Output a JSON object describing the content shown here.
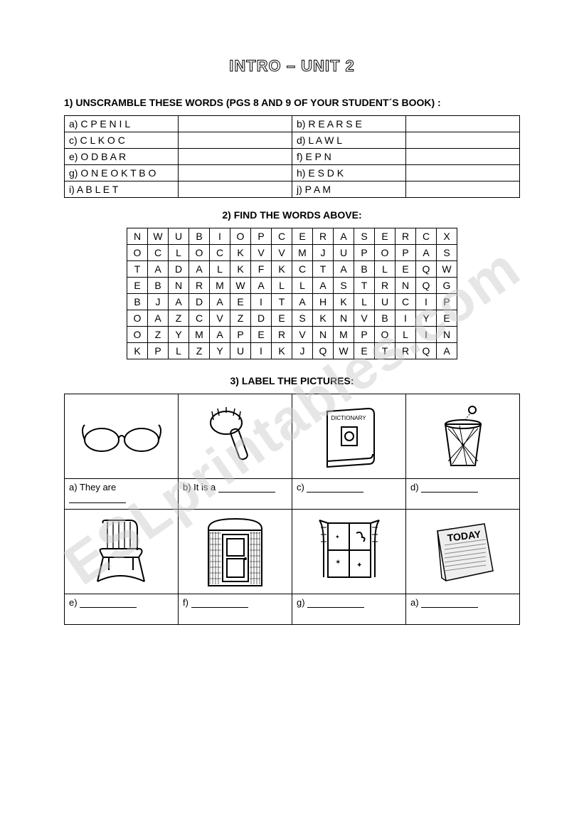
{
  "title": "INTRO – UNIT 2",
  "section1": {
    "instruction": "1) UNSCRAMBLE THESE WORDS (PGS 8 AND 9 OF YOUR STUDENT´S BOOK) :",
    "rows": [
      {
        "left": "a) C P E N I L",
        "right": "b) R E A R S E"
      },
      {
        "left": "c) C L K O C",
        "right": "d) L A W L"
      },
      {
        "left": "e) O D B A R",
        "right": "f) E P N"
      },
      {
        "left": "g) O N E O K T B O",
        "right": "h) E S D K"
      },
      {
        "left": "i) A B L E T",
        "right": "j) P A M"
      }
    ]
  },
  "section2": {
    "instruction": "2) FIND THE WORDS ABOVE:",
    "grid": [
      [
        "N",
        "W",
        "U",
        "B",
        "I",
        "O",
        "P",
        "C",
        "E",
        "R",
        "A",
        "S",
        "E",
        "R",
        "C",
        "X"
      ],
      [
        "O",
        "C",
        "L",
        "O",
        "C",
        "K",
        "V",
        "V",
        "M",
        "J",
        "U",
        "P",
        "O",
        "P",
        "A",
        "S"
      ],
      [
        "T",
        "A",
        "D",
        "A",
        "L",
        "K",
        "F",
        "K",
        "C",
        "T",
        "A",
        "B",
        "L",
        "E",
        "Q",
        "W"
      ],
      [
        "E",
        "B",
        "N",
        "R",
        "M",
        "W",
        "A",
        "L",
        "L",
        "A",
        "S",
        "T",
        "R",
        "N",
        "Q",
        "G"
      ],
      [
        "B",
        "J",
        "A",
        "D",
        "A",
        "E",
        "I",
        "T",
        "A",
        "H",
        "K",
        "L",
        "U",
        "C",
        "I",
        "P"
      ],
      [
        "O",
        "A",
        "Z",
        "C",
        "V",
        "Z",
        "D",
        "E",
        "S",
        "K",
        "N",
        "V",
        "B",
        "I",
        "Y",
        "E"
      ],
      [
        "O",
        "Z",
        "Y",
        "M",
        "A",
        "P",
        "E",
        "R",
        "V",
        "N",
        "M",
        "P",
        "O",
        "L",
        "I",
        "N"
      ],
      [
        "K",
        "P",
        "L",
        "Z",
        "Y",
        "U",
        "I",
        "K",
        "J",
        "Q",
        "W",
        "E",
        "T",
        "R",
        "Q",
        "A"
      ]
    ]
  },
  "section3": {
    "instruction": "3) LABEL THE PICTURES:",
    "items": [
      {
        "label": "a) They are",
        "icon": "glasses-icon"
      },
      {
        "label": "b) It is a",
        "icon": "brush-icon"
      },
      {
        "label": "c)",
        "icon": "dictionary-icon",
        "book_text": "DICTIONARY"
      },
      {
        "label": "d)",
        "icon": "wastebasket-icon"
      },
      {
        "label": "e)",
        "icon": "chair-icon"
      },
      {
        "label": "f)",
        "icon": "door-icon"
      },
      {
        "label": "g)",
        "icon": "window-icon"
      },
      {
        "label": "a)",
        "icon": "newspaper-icon",
        "news_text": "TODAY"
      }
    ]
  },
  "watermark": "ESLprintables.com",
  "colors": {
    "page_bg": "#ffffff",
    "border": "#000000",
    "text": "#000000",
    "watermark": "rgba(200,200,200,0.45)"
  }
}
